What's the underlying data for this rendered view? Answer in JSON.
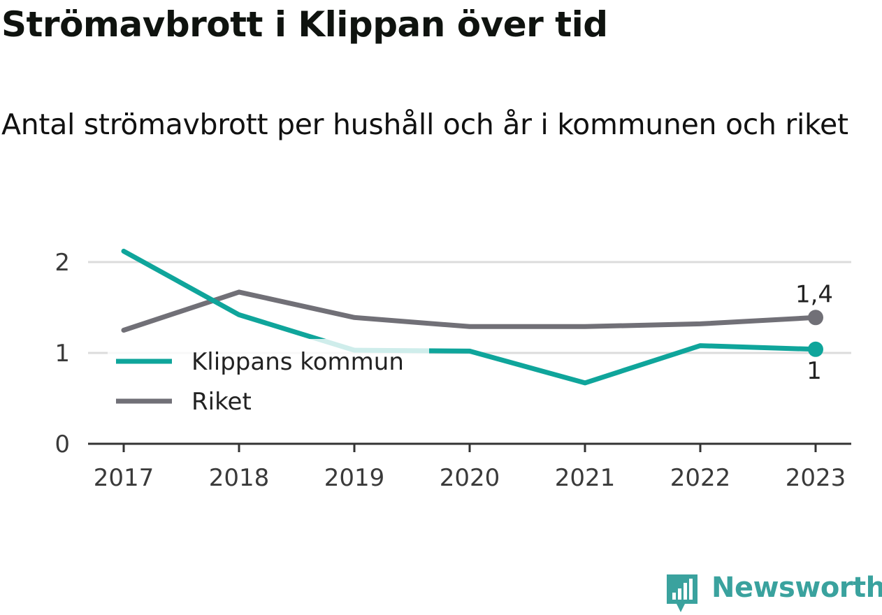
{
  "title": "Strömavbrott i Klippan över tid",
  "subtitle": "Antal strömavbrott per hushåll och år i kommunen och riket",
  "brand": {
    "name": "Newsworthy",
    "icon": "newsworthy-logo-icon",
    "color": "#3aa29e"
  },
  "colors": {
    "klippan": "#0fa59b",
    "riket": "#717077",
    "grid": "#dcdcdc",
    "axis": "#333333"
  },
  "chart_data": {
    "type": "line",
    "x": [
      "2017",
      "2018",
      "2019",
      "2020",
      "2021",
      "2022",
      "2023"
    ],
    "ylim": [
      0,
      2.4
    ],
    "yticks": [
      0,
      1,
      2
    ],
    "ytick_labels": [
      "0",
      "1",
      "2"
    ],
    "grid": true,
    "legend": "left-center",
    "series": [
      {
        "name": "Klippans kommun",
        "key": "klippan",
        "values": [
          2.12,
          1.42,
          1.03,
          1.02,
          0.67,
          1.08,
          1.04
        ],
        "end_label": "1"
      },
      {
        "name": "Riket",
        "key": "riket",
        "values": [
          1.25,
          1.67,
          1.39,
          1.29,
          1.29,
          1.32,
          1.39
        ],
        "end_label": "1,4"
      }
    ]
  }
}
